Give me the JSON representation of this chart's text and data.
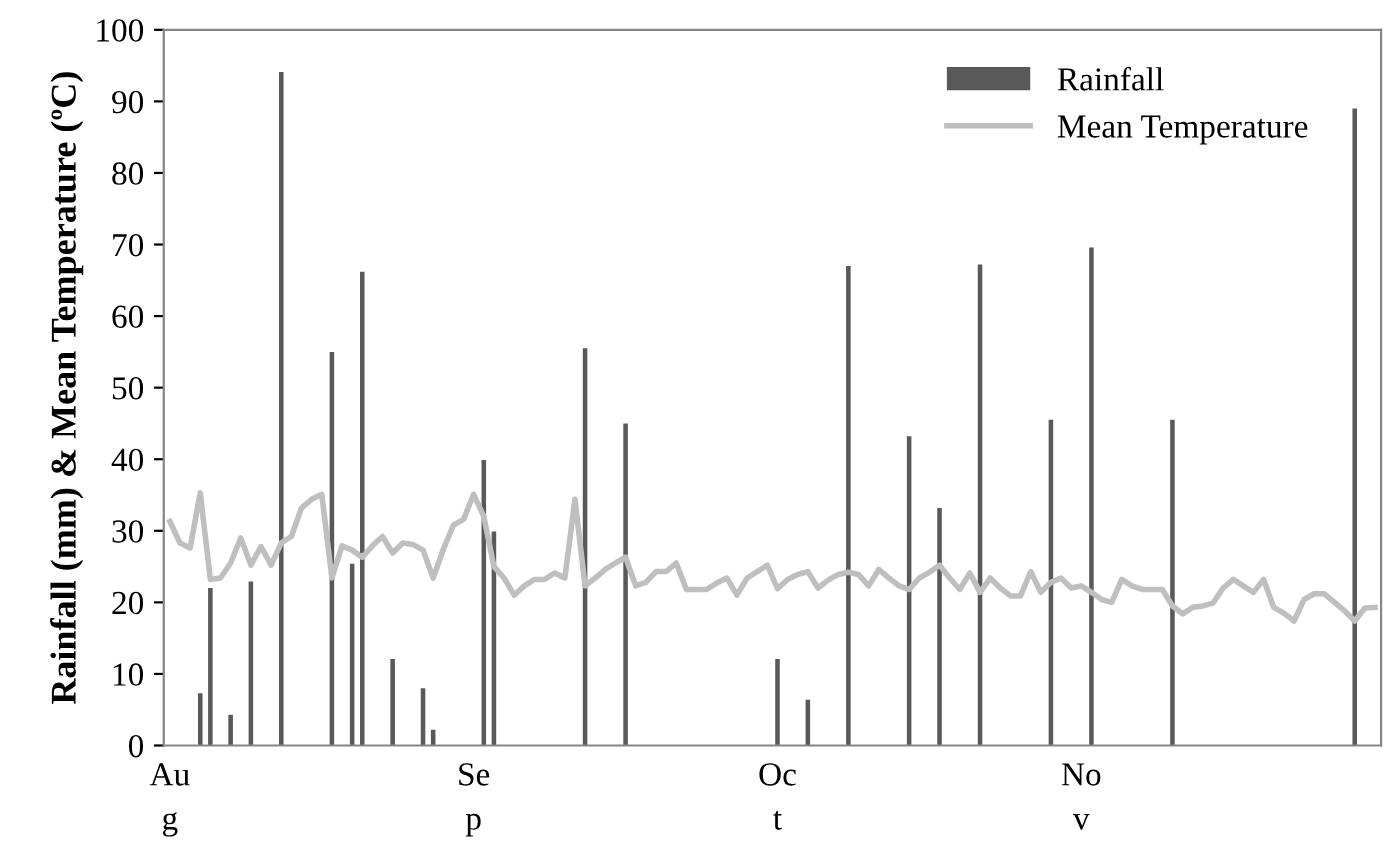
{
  "chart_data": {
    "type": "bar",
    "ylabel": "Rainfall (mm) & Mean Temperature (ºC)",
    "categories": [
      "Au\ng",
      null,
      null,
      null,
      null,
      null,
      null,
      null,
      null,
      null,
      null,
      null,
      null,
      null,
      null,
      null,
      null,
      null,
      null,
      null,
      null,
      null,
      null,
      null,
      null,
      null,
      null,
      null,
      null,
      null,
      "Se\np",
      null,
      null,
      null,
      null,
      null,
      null,
      null,
      null,
      null,
      null,
      null,
      null,
      null,
      null,
      null,
      null,
      null,
      null,
      null,
      null,
      null,
      null,
      null,
      null,
      null,
      null,
      null,
      null,
      null,
      "Oc\nt",
      null,
      null,
      null,
      null,
      null,
      null,
      null,
      null,
      null,
      null,
      null,
      null,
      null,
      null,
      null,
      null,
      null,
      null,
      null,
      null,
      null,
      null,
      null,
      null,
      null,
      null,
      null,
      null,
      null,
      "No\nv",
      null,
      null,
      null,
      null,
      null,
      null,
      null,
      null,
      null,
      null,
      null,
      null,
      null,
      null,
      null,
      null,
      null,
      null,
      null,
      null,
      null,
      null,
      null,
      null,
      null,
      null,
      null,
      null,
      null
    ],
    "series": [
      {
        "name": "Rainfall",
        "color": "#595959",
        "values": [
          0,
          0,
          0,
          7.3,
          22,
          0,
          4.3,
          0,
          22.9,
          0,
          0,
          94.1,
          0,
          0,
          0,
          0,
          55,
          0,
          25.4,
          66.2,
          0,
          0,
          12.1,
          0,
          0,
          8,
          2.2,
          0,
          0,
          0,
          0,
          39.9,
          29.9,
          0,
          0,
          0,
          0,
          0,
          0,
          0,
          0,
          55.5,
          0,
          0,
          0,
          45,
          0,
          0,
          0,
          0,
          0,
          0,
          0,
          0,
          0,
          0,
          0,
          0,
          0,
          0,
          12.1,
          0,
          0,
          6.4,
          0,
          0,
          0,
          67,
          0,
          0,
          0,
          0,
          0,
          43.2,
          0,
          0,
          33.2,
          0,
          0,
          0,
          67.2,
          0,
          0,
          0,
          0,
          0,
          0,
          45.5,
          0,
          0,
          0,
          69.6,
          0,
          0,
          0,
          0,
          0,
          0,
          0,
          45.5,
          0,
          0,
          0,
          0,
          0,
          0,
          0,
          0,
          0,
          0,
          0,
          0,
          0,
          0,
          0,
          0,
          0,
          89,
          0,
          0
        ]
      },
      {
        "name": "Mean Temperature",
        "type": "line",
        "color": "#bfbfbf",
        "values": [
          31.3,
          28.3,
          27.6,
          35.3,
          23.2,
          23.4,
          25.5,
          29,
          25.2,
          27.8,
          25.2,
          28.3,
          29.2,
          33.2,
          34.4,
          35.1,
          23.4,
          27.9,
          27.3,
          26.3,
          27.9,
          29.2,
          26.9,
          28.3,
          28.1,
          27.3,
          23.4,
          27.4,
          30.8,
          31.6,
          35.1,
          32,
          25,
          23.4,
          21,
          22.3,
          23.2,
          23.2,
          24.1,
          23.4,
          34.4,
          22.3,
          23.4,
          24.6,
          25.5,
          26.3,
          22.3,
          22.8,
          24.3,
          24.3,
          25.5,
          21.8,
          21.8,
          21.8,
          22.7,
          23.4,
          21,
          23.4,
          24.3,
          25.2,
          21.9,
          23.2,
          23.9,
          24.3,
          22,
          23.1,
          23.9,
          24.2,
          23.9,
          22.3,
          24.6,
          23.4,
          22.3,
          21.8,
          23.4,
          24.2,
          25.2,
          23.4,
          21.8,
          24.1,
          21.4,
          23.4,
          22,
          20.9,
          20.9,
          24.3,
          21.4,
          22.8,
          23.4,
          22,
          22.3,
          21.4,
          20.4,
          20,
          23.2,
          22.3,
          21.8,
          21.8,
          21.8,
          19.5,
          18.4,
          19.3,
          19.5,
          19.9,
          22,
          23.2,
          22.3,
          21.4,
          23.2,
          19.3,
          18.5,
          17.4,
          20.4,
          21.2,
          21.2,
          20,
          18.8,
          17.4,
          19.2,
          19.3
        ]
      }
    ],
    "ylim": [
      0,
      100
    ],
    "yticks": [
      0,
      10,
      20,
      30,
      40,
      50,
      60,
      70,
      80,
      90,
      100
    ],
    "legend": "top right",
    "grid": false
  }
}
